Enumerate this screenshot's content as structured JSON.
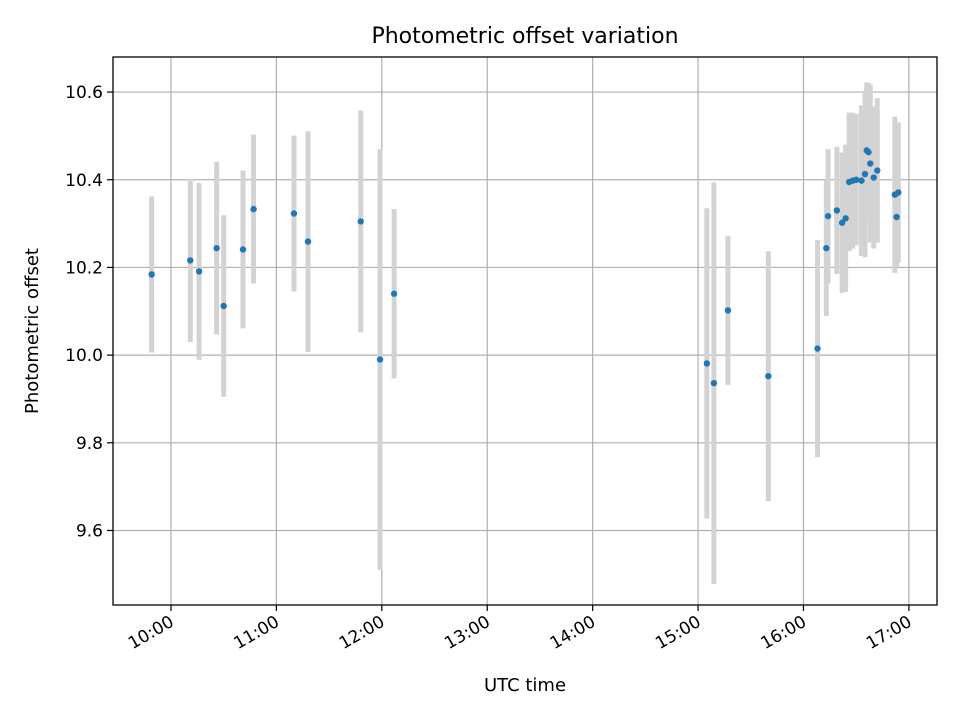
{
  "chart_data": {
    "type": "scatter",
    "title": "Photometric offset variation",
    "xlabel": "UTC time",
    "ylabel": "Photometric offset",
    "xlim": [
      "09:27",
      "17:16"
    ],
    "ylim": [
      9.43,
      10.68
    ],
    "x_ticks": [
      "10:00",
      "11:00",
      "12:00",
      "13:00",
      "14:00",
      "15:00",
      "16:00",
      "17:00"
    ],
    "y_ticks": [
      9.6,
      9.8,
      10.0,
      10.2,
      10.4,
      10.6
    ],
    "grid": true,
    "colors": {
      "points": "#1f77b4",
      "errorbars": "#d3d3d3",
      "grid": "#b0b0b0"
    },
    "points": [
      {
        "x": "09:49",
        "y": 10.184,
        "err": 0.178
      },
      {
        "x": "10:11",
        "y": 10.216,
        "err": 0.186
      },
      {
        "x": "10:16",
        "y": 10.191,
        "err": 0.202
      },
      {
        "x": "10:26",
        "y": 10.244,
        "err": 0.197
      },
      {
        "x": "10:30",
        "y": 10.112,
        "err": 0.207
      },
      {
        "x": "10:41",
        "y": 10.241,
        "err": 0.18
      },
      {
        "x": "10:47",
        "y": 10.333,
        "err": 0.17
      },
      {
        "x": "11:10",
        "y": 10.323,
        "err": 0.178
      },
      {
        "x": "11:18",
        "y": 10.259,
        "err": 0.252
      },
      {
        "x": "11:48",
        "y": 10.305,
        "err": 0.253
      },
      {
        "x": "11:59",
        "y": 9.99,
        "err": 0.48
      },
      {
        "x": "12:07",
        "y": 10.14,
        "err": 0.193
      },
      {
        "x": "15:05",
        "y": 9.981,
        "err": 0.354
      },
      {
        "x": "15:09",
        "y": 9.936,
        "err": 0.458
      },
      {
        "x": "15:17",
        "y": 10.102,
        "err": 0.17
      },
      {
        "x": "15:40",
        "y": 9.952,
        "err": 0.285
      },
      {
        "x": "16:08",
        "y": 10.015,
        "err": 0.248
      },
      {
        "x": "16:13",
        "y": 10.244,
        "err": 0.155
      },
      {
        "x": "16:14",
        "y": 10.317,
        "err": 0.153
      },
      {
        "x": "16:19",
        "y": 10.33,
        "err": 0.145
      },
      {
        "x": "16:22",
        "y": 10.302,
        "err": 0.16
      },
      {
        "x": "16:24",
        "y": 10.312,
        "err": 0.168
      },
      {
        "x": "16:26",
        "y": 10.395,
        "err": 0.158
      },
      {
        "x": "16:28",
        "y": 10.398,
        "err": 0.155
      },
      {
        "x": "16:30",
        "y": 10.4,
        "err": 0.15
      },
      {
        "x": "16:33",
        "y": 10.398,
        "err": 0.172
      },
      {
        "x": "16:35",
        "y": 10.413,
        "err": 0.19
      },
      {
        "x": "16:36",
        "y": 10.467,
        "err": 0.155
      },
      {
        "x": "16:37",
        "y": 10.463,
        "err": 0.158
      },
      {
        "x": "16:38",
        "y": 10.437,
        "err": 0.18
      },
      {
        "x": "16:40",
        "y": 10.405,
        "err": 0.162
      },
      {
        "x": "16:42",
        "y": 10.421,
        "err": 0.165
      },
      {
        "x": "16:52",
        "y": 10.366,
        "err": 0.178
      },
      {
        "x": "16:53",
        "y": 10.315,
        "err": 0.113
      },
      {
        "x": "16:54",
        "y": 10.371,
        "err": 0.16
      }
    ]
  }
}
